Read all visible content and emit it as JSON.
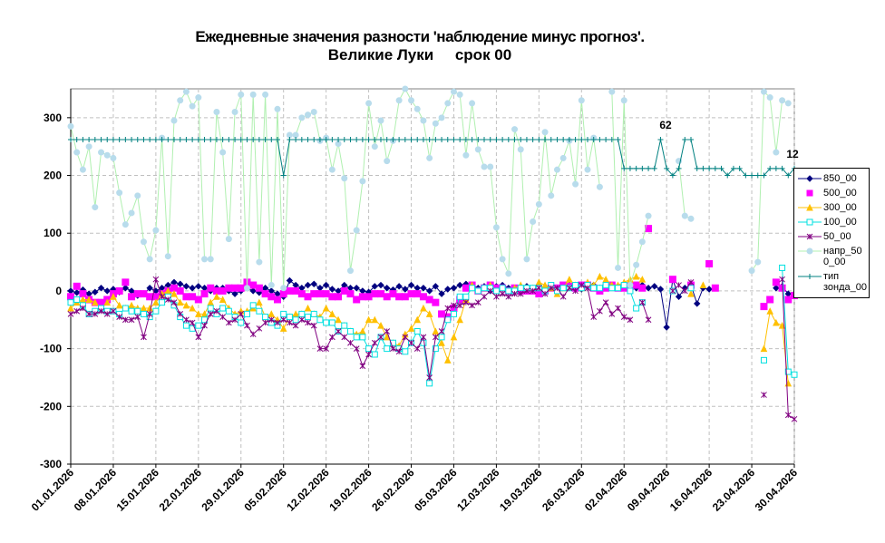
{
  "chart_data": {
    "type": "line",
    "title": "Ежедневные значения разности 'наблюдение минус прогноз'.",
    "subtitle": "Великие Луки     срок 00",
    "categories": [
      "01.01.2026",
      null,
      null,
      null,
      null,
      null,
      null,
      "08.01.2026",
      null,
      null,
      null,
      null,
      null,
      null,
      "15.01.2026",
      null,
      null,
      null,
      null,
      null,
      null,
      "22.01.2026",
      null,
      null,
      null,
      null,
      null,
      null,
      "29.01.2026",
      null,
      null,
      null,
      null,
      null,
      null,
      "05.02.2026",
      null,
      null,
      null,
      null,
      null,
      null,
      "12.02.2026",
      null,
      null,
      null,
      null,
      null,
      null,
      "19.02.2026",
      null,
      null,
      null,
      null,
      null,
      null,
      "26.02.2026",
      null,
      null,
      null,
      null,
      null,
      null,
      "05.03.2026",
      null,
      null,
      null,
      null,
      null,
      null,
      "12.03.2026",
      null,
      null,
      null,
      null,
      null,
      null,
      "19.03.2026",
      null,
      null,
      null,
      null,
      null,
      null,
      "26.03.2026",
      null,
      null,
      null,
      null,
      null,
      null,
      "02.04.2026",
      null,
      null,
      null,
      null,
      null,
      null,
      "09.04.2026",
      null,
      null,
      null,
      null,
      null,
      null,
      "16.04.2026",
      null,
      null,
      null,
      null,
      null,
      null,
      "23.04.2026",
      null,
      null,
      null,
      null,
      null,
      null,
      "30.04.2026"
    ],
    "ylim": [
      -300,
      350
    ],
    "yticks": [
      -300,
      -200,
      -100,
      0,
      100,
      200,
      300
    ],
    "grid": true,
    "annotations": [
      "62",
      "12"
    ],
    "series": [
      {
        "name": "850_00",
        "color": "#000080",
        "marker": "diamond",
        "line": true,
        "values": [
          0,
          -3,
          2,
          -5,
          -2,
          5,
          0,
          3,
          -2,
          5,
          0,
          -8,
          -5,
          5,
          0,
          5,
          10,
          15,
          12,
          8,
          5,
          8,
          5,
          0,
          5,
          5,
          0,
          -5,
          0,
          5,
          0,
          -3,
          5,
          0,
          -5,
          -10,
          18,
          10,
          5,
          10,
          12,
          5,
          10,
          3,
          0,
          10,
          5,
          5,
          0,
          -2,
          8,
          10,
          5,
          2,
          8,
          3,
          10,
          5,
          5,
          0,
          8,
          -5,
          3,
          5,
          10,
          12,
          10,
          5,
          8,
          0,
          8,
          10,
          5,
          3,
          5,
          8,
          0,
          -5,
          3,
          5,
          5,
          8,
          10,
          5,
          3,
          8,
          10,
          5,
          5,
          10,
          8,
          10,
          12,
          5,
          10,
          5,
          8,
          3,
          -63,
          20,
          -10,
          5,
          10,
          -22,
          5,
          3,
          null,
          null,
          null,
          null,
          null,
          null,
          null,
          null,
          null,
          null,
          5,
          8,
          -5,
          -5
        ]
      },
      {
        "name": "500_00",
        "color": "#ff00ff",
        "marker": "square",
        "line": false,
        "values": [
          -10,
          8,
          -5,
          -15,
          -20,
          -20,
          -15,
          -5,
          0,
          15,
          -10,
          -5,
          -5,
          -10,
          -10,
          -5,
          0,
          5,
          0,
          -10,
          -10,
          -15,
          -5,
          5,
          0,
          0,
          5,
          5,
          5,
          15,
          10,
          5,
          -5,
          -10,
          -15,
          -5,
          0,
          0,
          -5,
          -10,
          -5,
          -5,
          -5,
          -10,
          -10,
          0,
          -5,
          -15,
          -10,
          -10,
          -5,
          -5,
          -10,
          -5,
          -10,
          -10,
          -5,
          -5,
          -10,
          -15,
          -20,
          -40,
          -45,
          -30,
          -15,
          5,
          10,
          0,
          5,
          10,
          5,
          5,
          0,
          5,
          0,
          0,
          0,
          -5,
          0,
          5,
          5,
          10,
          8,
          5,
          10,
          10,
          5,
          0,
          5,
          10,
          5,
          5,
          8,
          10,
          5,
          108,
          null,
          null,
          null,
          20,
          null,
          null,
          10,
          null,
          null,
          47,
          5,
          null,
          null,
          null,
          null,
          null,
          null,
          null,
          -27,
          -15,
          15,
          5,
          -15,
          -8
        ]
      },
      {
        "name": "300_00",
        "color": "#ffc000",
        "marker": "triangle",
        "line": true,
        "values": [
          -30,
          -20,
          -15,
          -15,
          -20,
          -30,
          -20,
          -10,
          -25,
          -30,
          -25,
          -30,
          -30,
          -30,
          -20,
          -5,
          0,
          -5,
          -20,
          -25,
          -30,
          -40,
          -40,
          -20,
          -10,
          -15,
          -30,
          -40,
          -35,
          -35,
          -30,
          -20,
          -45,
          -40,
          -50,
          -65,
          -45,
          -40,
          -40,
          -30,
          -40,
          -45,
          -30,
          -40,
          -50,
          -60,
          -70,
          -75,
          -70,
          -50,
          -50,
          -60,
          -80,
          -90,
          -95,
          -75,
          -65,
          -50,
          -30,
          -40,
          -70,
          -90,
          -120,
          -80,
          -50,
          -15,
          10,
          0,
          5,
          10,
          0,
          5,
          0,
          5,
          10,
          5,
          5,
          15,
          10,
          5,
          -5,
          5,
          20,
          10,
          5,
          15,
          10,
          25,
          20,
          10,
          10,
          15,
          20,
          25,
          20,
          null,
          null,
          null,
          null,
          null,
          null,
          null,
          -5,
          null,
          10,
          null,
          null,
          null,
          null,
          null,
          null,
          null,
          null,
          null,
          -100,
          -35,
          -55,
          -60,
          -160,
          null
        ]
      },
      {
        "name": "100_00",
        "color": "#00e0e0",
        "marker": "open-square",
        "line": true,
        "values": [
          -20,
          -15,
          -25,
          -40,
          -35,
          -30,
          -35,
          -35,
          -40,
          -30,
          -35,
          -35,
          -40,
          -45,
          -35,
          -20,
          -10,
          -25,
          -45,
          -60,
          -65,
          -60,
          -50,
          -30,
          -40,
          -30,
          -35,
          -45,
          -55,
          -40,
          -25,
          -35,
          -45,
          -55,
          -60,
          -40,
          -45,
          -50,
          -40,
          -45,
          -40,
          -50,
          -55,
          -55,
          -70,
          -60,
          -70,
          -80,
          -80,
          -100,
          -110,
          -80,
          -100,
          -90,
          -100,
          -105,
          -90,
          -70,
          -90,
          -160,
          -100,
          -80,
          -50,
          -40,
          -10,
          -10,
          5,
          0,
          5,
          5,
          0,
          5,
          0,
          0,
          5,
          5,
          5,
          5,
          0,
          10,
          0,
          5,
          5,
          10,
          5,
          10,
          5,
          5,
          10,
          5,
          5,
          10,
          0,
          -30,
          -20,
          null,
          null,
          null,
          null,
          0,
          null,
          null,
          5,
          null,
          null,
          null,
          null,
          null,
          null,
          null,
          null,
          null,
          null,
          null,
          -120,
          null,
          null,
          40,
          -140,
          -145
        ]
      },
      {
        "name": "50_00",
        "color": "#800080",
        "marker": "star",
        "line": true,
        "values": [
          -40,
          -35,
          -30,
          -40,
          -40,
          -35,
          -40,
          -35,
          -45,
          -50,
          -50,
          -45,
          -80,
          -40,
          20,
          -10,
          -15,
          -20,
          -40,
          -50,
          -55,
          -80,
          -60,
          -40,
          -35,
          -45,
          -55,
          -50,
          -40,
          -60,
          -75,
          -65,
          -55,
          -50,
          -55,
          -50,
          -55,
          -60,
          -50,
          -55,
          -60,
          -100,
          -100,
          -80,
          -70,
          -80,
          -90,
          -100,
          -130,
          -110,
          -90,
          -80,
          -70,
          -100,
          -105,
          -80,
          -90,
          -100,
          -80,
          -150,
          -80,
          -70,
          -30,
          -25,
          -25,
          -20,
          -25,
          -20,
          -10,
          0,
          -10,
          -5,
          -10,
          -5,
          -5,
          0,
          0,
          5,
          -5,
          5,
          5,
          -10,
          5,
          0,
          10,
          5,
          -45,
          -35,
          -20,
          -40,
          -30,
          -45,
          -50,
          null,
          -20,
          -50,
          null,
          null,
          null,
          0,
          10,
          0,
          15,
          null,
          null,
          null,
          null,
          null,
          null,
          null,
          null,
          null,
          null,
          null,
          -180,
          null,
          null,
          20,
          -215,
          -222
        ]
      },
      {
        "name": "напр_500_00",
        "color": "#b8dcec",
        "line_color": "#b0f0b0",
        "marker": "circle",
        "line": true,
        "values": [
          285,
          240,
          210,
          250,
          145,
          240,
          235,
          230,
          170,
          115,
          135,
          165,
          85,
          55,
          105,
          265,
          60,
          295,
          330,
          345,
          320,
          335,
          55,
          55,
          310,
          240,
          90,
          310,
          340,
          5,
          340,
          50,
          340,
          10,
          315,
          5,
          270,
          270,
          300,
          305,
          310,
          260,
          265,
          210,
          255,
          195,
          35,
          105,
          190,
          325,
          250,
          295,
          225,
          260,
          330,
          350,
          330,
          315,
          295,
          230,
          290,
          300,
          325,
          345,
          340,
          235,
          325,
          245,
          215,
          215,
          110,
          55,
          30,
          280,
          245,
          55,
          120,
          150,
          275,
          165,
          210,
          230,
          260,
          185,
          330,
          210,
          265,
          180,
          null,
          345,
          40,
          330,
          10,
          45,
          85,
          130,
          null,
          null,
          null,
          null,
          225,
          130,
          125,
          null,
          null,
          null,
          null,
          null,
          null,
          null,
          null,
          null,
          35,
          50,
          345,
          335,
          240,
          330,
          325,
          null
        ]
      },
      {
        "name": "тип зонда_00",
        "color": "#008080",
        "marker": "plus",
        "line": true,
        "values": [
          262,
          262,
          262,
          262,
          262,
          262,
          262,
          262,
          262,
          262,
          262,
          262,
          262,
          262,
          262,
          262,
          262,
          262,
          262,
          262,
          262,
          262,
          262,
          262,
          262,
          262,
          262,
          262,
          262,
          262,
          262,
          262,
          262,
          262,
          262,
          200,
          262,
          262,
          262,
          262,
          262,
          262,
          262,
          262,
          262,
          262,
          262,
          262,
          262,
          262,
          262,
          262,
          262,
          262,
          262,
          262,
          262,
          262,
          262,
          262,
          262,
          262,
          262,
          262,
          262,
          262,
          262,
          262,
          262,
          262,
          262,
          262,
          262,
          262,
          262,
          262,
          262,
          262,
          262,
          262,
          262,
          262,
          262,
          262,
          262,
          262,
          262,
          262,
          262,
          262,
          262,
          212,
          212,
          212,
          212,
          212,
          212,
          262,
          212,
          200,
          212,
          262,
          262,
          212,
          212,
          212,
          212,
          212,
          200,
          212,
          212,
          200,
          200,
          200,
          200,
          212,
          212,
          212,
          200,
          212
        ]
      }
    ]
  }
}
